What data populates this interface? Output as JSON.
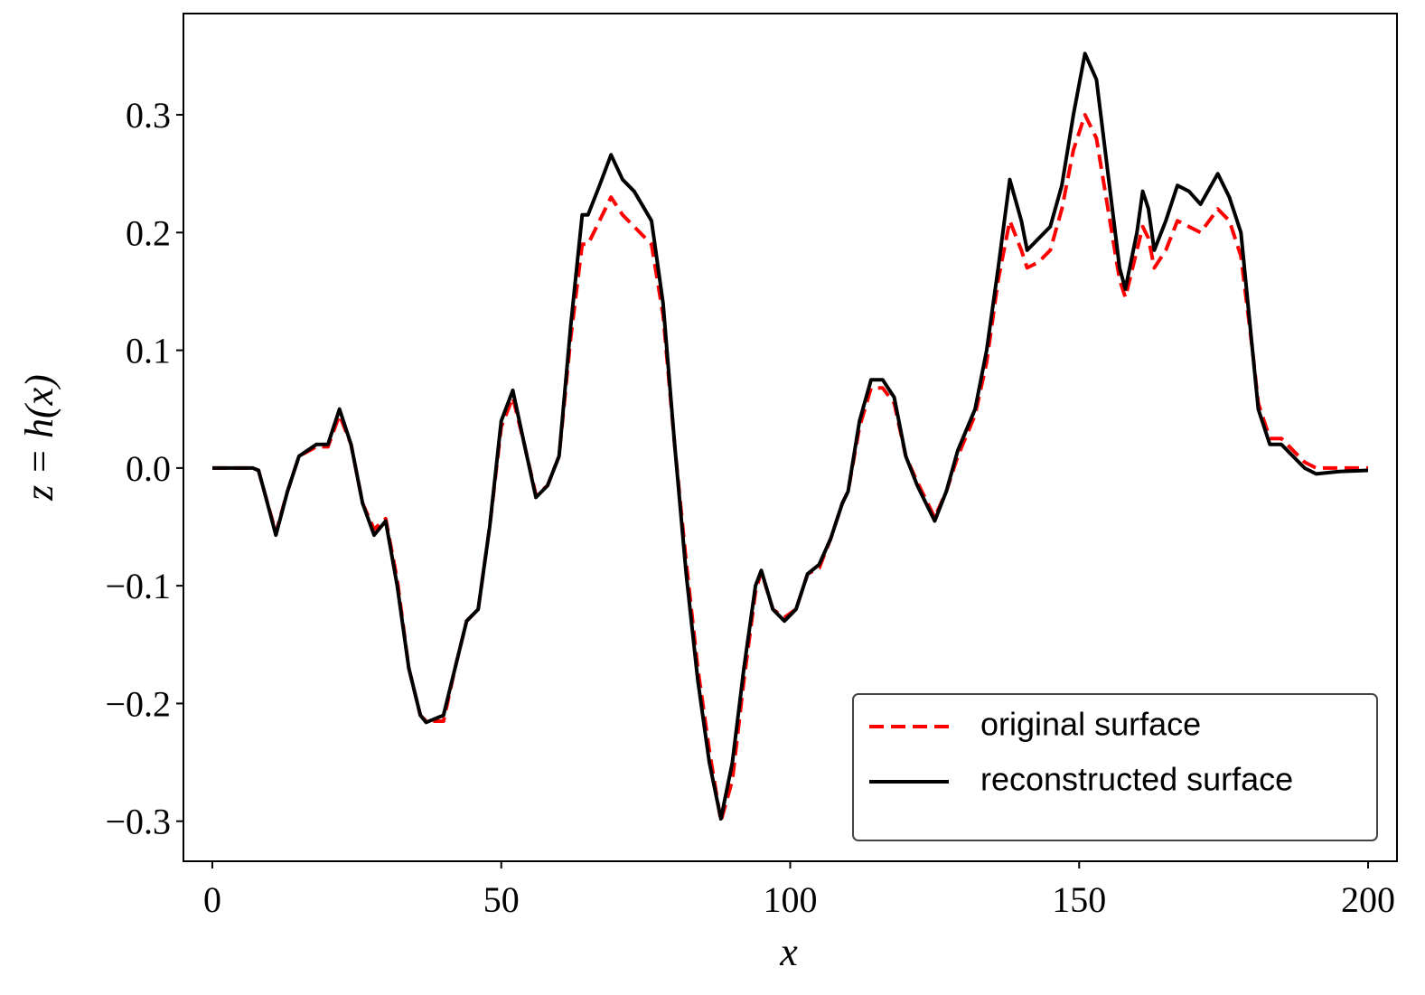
{
  "chart_data": {
    "type": "line",
    "xlabel": "x",
    "ylabel": "z = h(x)",
    "x": [
      0,
      7,
      8,
      9,
      11,
      13,
      15,
      18,
      20,
      22,
      24,
      26,
      28,
      30,
      32,
      34,
      36,
      37,
      40,
      42,
      44,
      46,
      48,
      50,
      52,
      54,
      56,
      58,
      60,
      62,
      64,
      65,
      67,
      69,
      71,
      73,
      76,
      78,
      80,
      82,
      84,
      86,
      88,
      90,
      92,
      94,
      95,
      97,
      99,
      101,
      103,
      105,
      107,
      109,
      110,
      112,
      114,
      116,
      118,
      120,
      122,
      125,
      127,
      129,
      132,
      134,
      136,
      138,
      140,
      141,
      143,
      145,
      147,
      149,
      151,
      153,
      155,
      157,
      158,
      160,
      161,
      162,
      163,
      165,
      167,
      169,
      171,
      174,
      176,
      178,
      180,
      181,
      183,
      185,
      187,
      189,
      191,
      195,
      200
    ],
    "series": [
      {
        "name": "original surface",
        "color": "#ff0000",
        "dashed": true,
        "values": [
          0,
          0,
          -0.002,
          -0.02,
          -0.055,
          -0.02,
          0.01,
          0.018,
          0.018,
          0.045,
          0.02,
          -0.03,
          -0.052,
          -0.043,
          -0.095,
          -0.17,
          -0.21,
          -0.215,
          -0.215,
          -0.17,
          -0.13,
          -0.12,
          -0.05,
          0.035,
          0.06,
          0.02,
          -0.023,
          -0.015,
          0.01,
          0.11,
          0.19,
          0.19,
          0.21,
          0.23,
          0.215,
          0.205,
          0.19,
          0.13,
          0.02,
          -0.08,
          -0.17,
          -0.24,
          -0.3,
          -0.265,
          -0.18,
          -0.105,
          -0.088,
          -0.12,
          -0.127,
          -0.12,
          -0.09,
          -0.085,
          -0.06,
          -0.03,
          -0.02,
          0.035,
          0.068,
          0.068,
          0.055,
          0.01,
          -0.012,
          -0.042,
          -0.02,
          0.01,
          0.045,
          0.09,
          0.16,
          0.21,
          0.185,
          0.17,
          0.175,
          0.185,
          0.22,
          0.27,
          0.3,
          0.28,
          0.22,
          0.16,
          0.145,
          0.185,
          0.205,
          0.195,
          0.17,
          0.185,
          0.21,
          0.205,
          0.2,
          0.22,
          0.21,
          0.18,
          0.1,
          0.055,
          0.025,
          0.025,
          0.015,
          0.005,
          0,
          0,
          0
        ]
      },
      {
        "name": "reconstructed surface",
        "color": "#000000",
        "dashed": false,
        "values": [
          0,
          0,
          -0.002,
          -0.02,
          -0.057,
          -0.02,
          0.01,
          0.02,
          0.02,
          0.05,
          0.02,
          -0.03,
          -0.057,
          -0.045,
          -0.1,
          -0.17,
          -0.21,
          -0.216,
          -0.21,
          -0.17,
          -0.13,
          -0.12,
          -0.05,
          0.04,
          0.066,
          0.02,
          -0.025,
          -0.015,
          0.01,
          0.12,
          0.215,
          0.215,
          0.24,
          0.266,
          0.245,
          0.235,
          0.21,
          0.14,
          0.02,
          -0.09,
          -0.18,
          -0.25,
          -0.298,
          -0.25,
          -0.17,
          -0.1,
          -0.087,
          -0.12,
          -0.13,
          -0.12,
          -0.09,
          -0.082,
          -0.06,
          -0.03,
          -0.02,
          0.04,
          0.075,
          0.075,
          0.06,
          0.01,
          -0.015,
          -0.045,
          -0.02,
          0.015,
          0.05,
          0.1,
          0.17,
          0.245,
          0.21,
          0.185,
          0.195,
          0.205,
          0.24,
          0.3,
          0.352,
          0.33,
          0.25,
          0.17,
          0.152,
          0.2,
          0.235,
          0.22,
          0.185,
          0.21,
          0.24,
          0.235,
          0.224,
          0.25,
          0.23,
          0.2,
          0.1,
          0.05,
          0.02,
          0.02,
          0.01,
          0.0,
          -0.005,
          -0.003,
          -0.002
        ]
      }
    ],
    "xlim": [
      -5,
      205
    ],
    "xticks": [
      0,
      50,
      100,
      150,
      200
    ],
    "ylim": [
      -0.334,
      0.386
    ],
    "yticks": [
      {
        "value": -0.3,
        "label": "−0.3"
      },
      {
        "value": -0.2,
        "label": "−0.2"
      },
      {
        "value": -0.1,
        "label": "−0.1"
      },
      {
        "value": 0,
        "label": "0.0"
      },
      0.1,
      0.2,
      0.3
    ],
    "grid": false,
    "legend": "lower right"
  }
}
